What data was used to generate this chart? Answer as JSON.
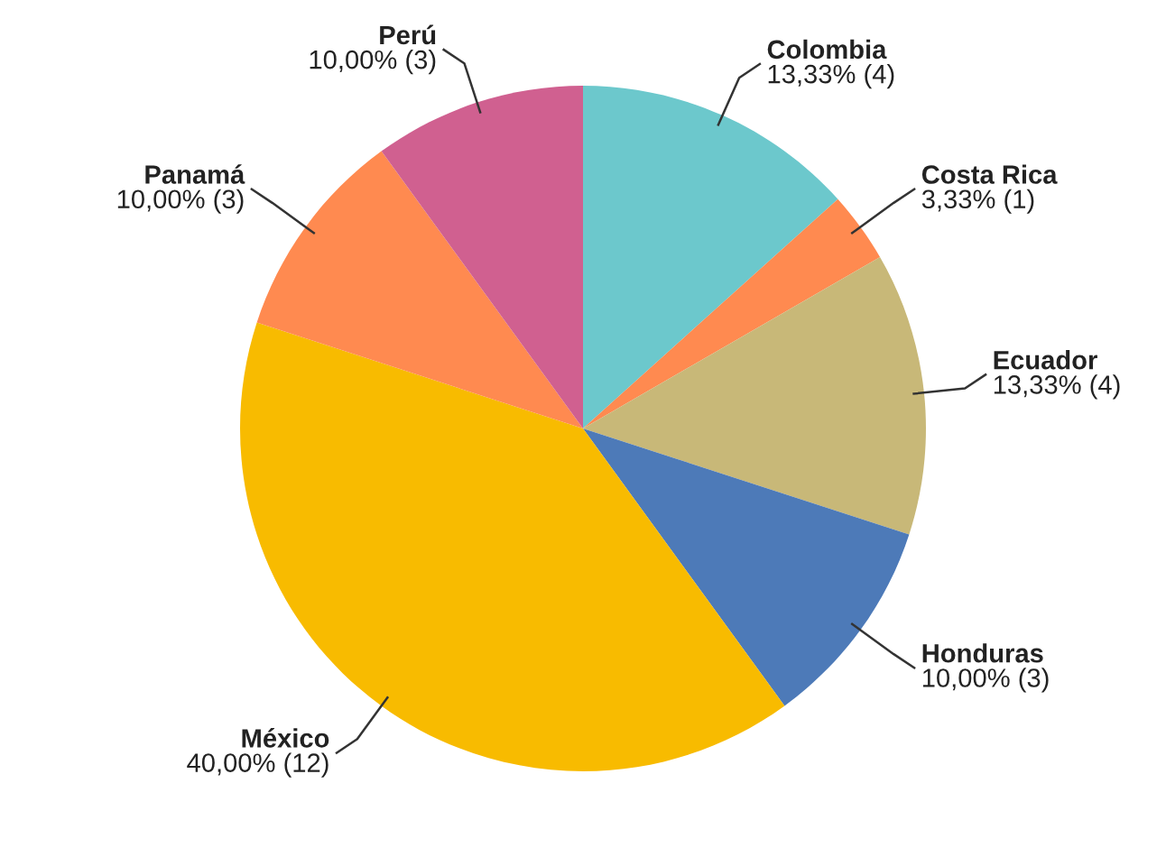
{
  "chart_data": {
    "type": "pie",
    "categories": [
      "Colombia",
      "Costa Rica",
      "Ecuador",
      "Honduras",
      "México",
      "Panamá",
      "Perú"
    ],
    "values": [
      4,
      1,
      4,
      3,
      12,
      3,
      3
    ],
    "value_labels": [
      "13,33% (4)",
      "3,33% (1)",
      "13,33% (4)",
      "10,00% (3)",
      "40,00% (12)",
      "10,00% (3)",
      "10,00% (3)"
    ],
    "colors": [
      "#6cc8cc",
      "#ff8a50",
      "#c8b878",
      "#4d7ab8",
      "#f8bb00",
      "#ff8a50",
      "#d06090"
    ],
    "legend": false
  }
}
